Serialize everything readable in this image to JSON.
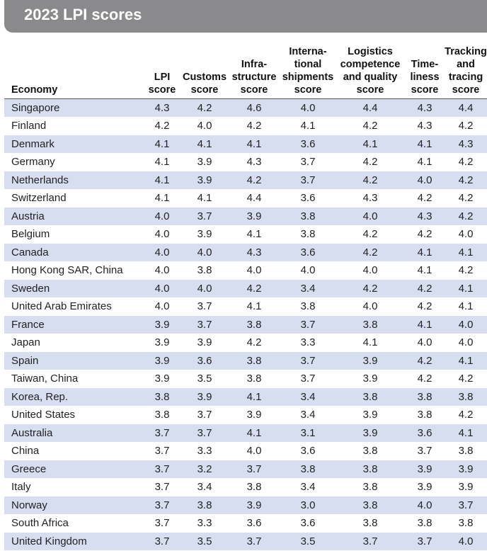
{
  "title": "2023 LPI scores",
  "columns": [
    [
      "Economy"
    ],
    [
      "LPI",
      "score"
    ],
    [
      "Customs",
      "score"
    ],
    [
      "Infra-",
      "structure",
      "score"
    ],
    [
      "Interna-",
      "tional",
      "shipments",
      "score"
    ],
    [
      "Logistics",
      "competence",
      "and quality",
      "score"
    ],
    [
      "Time-",
      "liness",
      "score"
    ],
    [
      "Tracking",
      "and",
      "tracing",
      "score"
    ]
  ],
  "rows": [
    [
      "Singapore",
      "4.3",
      "4.2",
      "4.6",
      "4.0",
      "4.4",
      "4.3",
      "4.4"
    ],
    [
      "Finland",
      "4.2",
      "4.0",
      "4.2",
      "4.1",
      "4.2",
      "4.3",
      "4.2"
    ],
    [
      "Denmark",
      "4.1",
      "4.1",
      "4.1",
      "3.6",
      "4.1",
      "4.1",
      "4.3"
    ],
    [
      "Germany",
      "4.1",
      "3.9",
      "4.3",
      "3.7",
      "4.2",
      "4.1",
      "4.2"
    ],
    [
      "Netherlands",
      "4.1",
      "3.9",
      "4.2",
      "3.7",
      "4.2",
      "4.0",
      "4.2"
    ],
    [
      "Switzerland",
      "4.1",
      "4.1",
      "4.4",
      "3.6",
      "4.3",
      "4.2",
      "4.2"
    ],
    [
      "Austria",
      "4.0",
      "3.7",
      "3.9",
      "3.8",
      "4.0",
      "4.3",
      "4.2"
    ],
    [
      "Belgium",
      "4.0",
      "3.9",
      "4.1",
      "3.8",
      "4.2",
      "4.2",
      "4.0"
    ],
    [
      "Canada",
      "4.0",
      "4.0",
      "4.3",
      "3.6",
      "4.2",
      "4.1",
      "4.1"
    ],
    [
      "Hong Kong SAR, China",
      "4.0",
      "3.8",
      "4.0",
      "4.0",
      "4.0",
      "4.1",
      "4.2"
    ],
    [
      "Sweden",
      "4.0",
      "4.0",
      "4.2",
      "3.4",
      "4.2",
      "4.2",
      "4.1"
    ],
    [
      "United Arab Emirates",
      "4.0",
      "3.7",
      "4.1",
      "3.8",
      "4.0",
      "4.2",
      "4.1"
    ],
    [
      "France",
      "3.9",
      "3.7",
      "3.8",
      "3.7",
      "3.8",
      "4.1",
      "4.0"
    ],
    [
      "Japan",
      "3.9",
      "3.9",
      "4.2",
      "3.3",
      "4.1",
      "4.0",
      "4.0"
    ],
    [
      "Spain",
      "3.9",
      "3.6",
      "3.8",
      "3.7",
      "3.9",
      "4.2",
      "4.1"
    ],
    [
      "Taiwan, China",
      "3.9",
      "3.5",
      "3.8",
      "3.7",
      "3.9",
      "4.2",
      "4.2"
    ],
    [
      "Korea, Rep.",
      "3.8",
      "3.9",
      "4.1",
      "3.4",
      "3.8",
      "3.8",
      "3.8"
    ],
    [
      "United States",
      "3.8",
      "3.7",
      "3.9",
      "3.4",
      "3.9",
      "3.8",
      "4.2"
    ],
    [
      "Australia",
      "3.7",
      "3.7",
      "4.1",
      "3.1",
      "3.9",
      "3.6",
      "4.1"
    ],
    [
      "China",
      "3.7",
      "3.3",
      "4.0",
      "3.6",
      "3.8",
      "3.7",
      "3.8"
    ],
    [
      "Greece",
      "3.7",
      "3.2",
      "3.7",
      "3.8",
      "3.8",
      "3.9",
      "3.9"
    ],
    [
      "Italy",
      "3.7",
      "3.4",
      "3.8",
      "3.4",
      "3.8",
      "3.9",
      "3.9"
    ],
    [
      "Norway",
      "3.7",
      "3.8",
      "3.9",
      "3.0",
      "3.8",
      "4.0",
      "3.7"
    ],
    [
      "South Africa",
      "3.7",
      "3.3",
      "3.6",
      "3.6",
      "3.8",
      "3.8",
      "3.8"
    ],
    [
      "United Kingdom",
      "3.7",
      "3.5",
      "3.7",
      "3.5",
      "3.7",
      "3.7",
      "4.0"
    ]
  ]
}
